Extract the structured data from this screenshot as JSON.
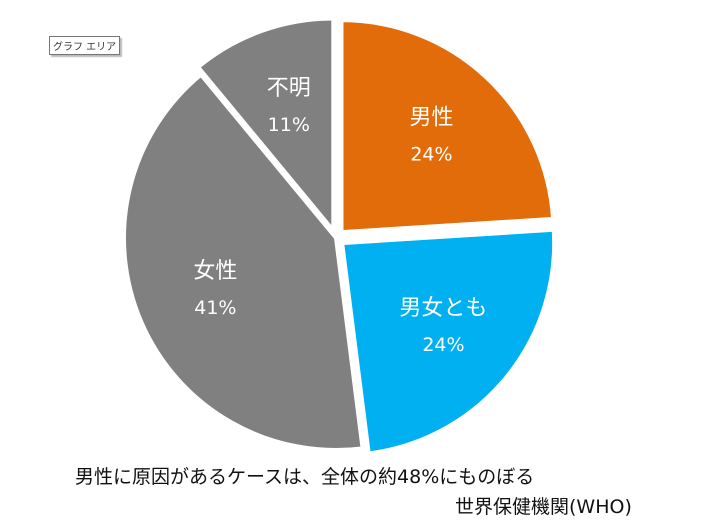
{
  "tooltip": "グラフ エリア",
  "chart_data": {
    "type": "pie",
    "categories": [
      "男性",
      "男女とも",
      "女性",
      "不明"
    ],
    "values": [
      24,
      24,
      41,
      11
    ],
    "labels": [
      "24%",
      "24%",
      "41%",
      "11%"
    ],
    "colors": [
      "#E36C0A",
      "#00B0F0",
      "#808080",
      "#808080"
    ],
    "start": "top",
    "direction": "clockwise"
  },
  "caption": "男性に原因があるケースは、全体の約48%にものぼる",
  "source": "世界保健機関(WHO)"
}
